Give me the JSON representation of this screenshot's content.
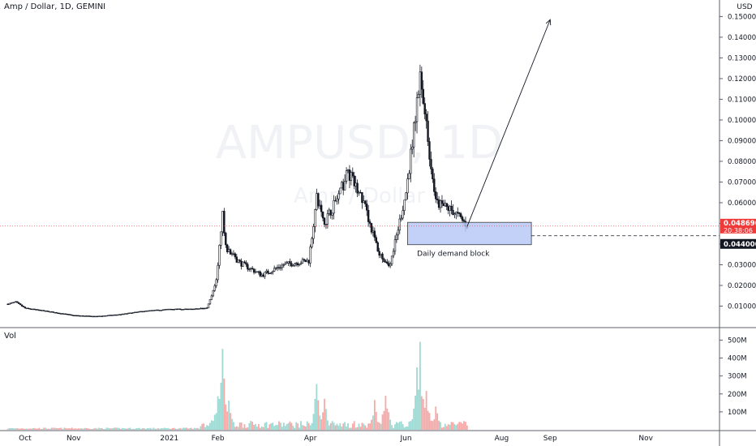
{
  "header": {
    "title": "Amp / Dollar, 1D, GEMINI"
  },
  "watermark": {
    "symbol": "AMPUSD, 1D",
    "name": "Amp / Dollar"
  },
  "volume_pane": {
    "label": "Vol"
  },
  "colors": {
    "up": "#26a69a",
    "down": "#ef5350",
    "box_fill": "#b9c8f6",
    "box_stroke": "#3b3b3b",
    "price_tag": "#ef3a3a"
  },
  "chart_data": {
    "type": "candlestick",
    "currency": "USD",
    "y_ticks": [
      "0.010000",
      "0.020000",
      "0.030000",
      "0.040000",
      "0.050000",
      "0.060000",
      "0.070000",
      "0.080000",
      "0.090000",
      "0.100000",
      "0.110000",
      "0.120000",
      "0.130000",
      "0.140000",
      "0.150000"
    ],
    "ylim": [
      0,
      0.158
    ],
    "x_ticks": [
      "Oct",
      "Nov",
      "2021",
      "Feb",
      "Apr",
      "Jun",
      "Aug",
      "Sep",
      "Nov"
    ],
    "last_price": "0.048690",
    "countdown": "20:38:06",
    "demand_level": "0.044000",
    "annotation": "Daily demand block",
    "demand_block": {
      "top": 0.0505,
      "bottom": 0.0397
    },
    "target_arrow": {
      "from": 0.0485,
      "to": 0.1485
    },
    "price_path": [
      [
        "2020-09-20",
        0.011
      ],
      [
        "2020-09-25",
        0.012
      ],
      [
        "2020-10-01",
        0.009
      ],
      [
        "2020-10-15",
        0.0075
      ],
      [
        "2020-11-01",
        0.0055
      ],
      [
        "2020-11-15",
        0.005
      ],
      [
        "2020-12-01",
        0.006
      ],
      [
        "2020-12-15",
        0.0075
      ],
      [
        "2021-01-01",
        0.0085
      ],
      [
        "2021-01-15",
        0.0085
      ],
      [
        "2021-01-25",
        0.009
      ],
      [
        "2021-01-31",
        0.022
      ],
      [
        "2021-02-04",
        0.055
      ],
      [
        "2021-02-06",
        0.038
      ],
      [
        "2021-02-15",
        0.031
      ],
      [
        "2021-03-01",
        0.025
      ],
      [
        "2021-03-15",
        0.03
      ],
      [
        "2021-03-31",
        0.032
      ],
      [
        "2021-04-05",
        0.062
      ],
      [
        "2021-04-10",
        0.05
      ],
      [
        "2021-04-20",
        0.065
      ],
      [
        "2021-04-25",
        0.075
      ],
      [
        "2021-05-05",
        0.06
      ],
      [
        "2021-05-15",
        0.035
      ],
      [
        "2021-05-22",
        0.03
      ],
      [
        "2021-06-01",
        0.065
      ],
      [
        "2021-06-10",
        0.12
      ],
      [
        "2021-06-15",
        0.09
      ],
      [
        "2021-06-20",
        0.06
      ],
      [
        "2021-07-01",
        0.056
      ],
      [
        "2021-07-10",
        0.049
      ]
    ],
    "volume_ticks": [
      "100M",
      "200M",
      "300M",
      "400M",
      "500M"
    ],
    "volume_ylim": [
      0,
      520
    ],
    "volume_spikes_m": [
      [
        "2021-01-28",
        80
      ],
      [
        "2021-02-01",
        260
      ],
      [
        "2021-02-04",
        480
      ],
      [
        "2021-02-08",
        200
      ],
      [
        "2021-04-05",
        310
      ],
      [
        "2021-04-10",
        200
      ],
      [
        "2021-05-12",
        180
      ],
      [
        "2021-05-19",
        280
      ],
      [
        "2021-06-08",
        420
      ],
      [
        "2021-06-10",
        490
      ],
      [
        "2021-06-14",
        260
      ],
      [
        "2021-06-20",
        160
      ]
    ]
  }
}
